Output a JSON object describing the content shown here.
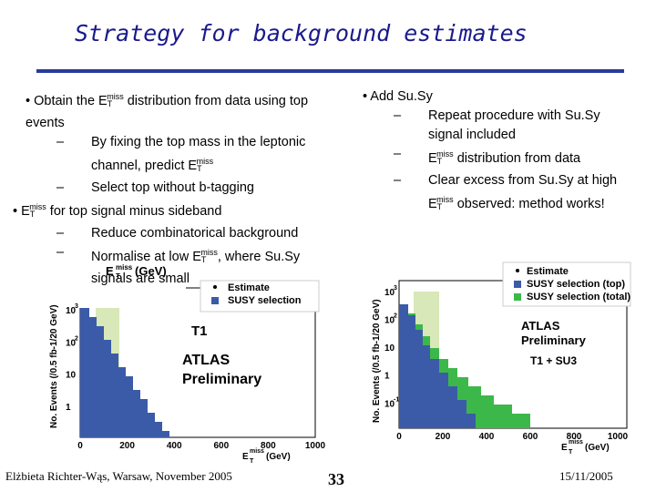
{
  "title": "Strategy for background estimates",
  "left": [
    [
      "• Obtain the E",
      "T",
      "miss",
      " distribution from data using top events"
    ],
    [
      "–",
      "By fixing the top mass in the leptonic channel, predict E",
      "T",
      "miss"
    ],
    [
      "–",
      "Select top without b-tagging"
    ],
    [
      "• E",
      "T",
      "miss",
      " for top signal minus sideband"
    ],
    [
      "–",
      "Reduce combinatorical background"
    ],
    [
      "–",
      "Normalise at low E",
      "T",
      "miss",
      ", where Su.Sy signals are small"
    ]
  ],
  "right": [
    [
      "• Add Su.Sy"
    ],
    [
      "–",
      "Repeat procedure with Su.Sy signal included"
    ],
    [
      "–",
      "E",
      "T",
      "miss",
      " distribution from data"
    ],
    [
      "–",
      "Clear excess from Su.Sy at high E",
      "T",
      "miss",
      " observed: method works!"
    ]
  ],
  "plot1": {
    "header": [
      "E",
      "T",
      "miss",
      " (GeV)"
    ],
    "legend": [
      "Estimate",
      "SUSY selection"
    ],
    "tag": "T1",
    "atlas": "ATLAS",
    "preliminary": "Preliminary",
    "ylabel": "No. Events (/0.5 fb-1/20 GeV)",
    "yticks": [
      [
        "10",
        "3"
      ],
      [
        "10",
        "2"
      ],
      [
        "10",
        ""
      ],
      [
        "1",
        ""
      ]
    ],
    "xticks": [
      0,
      200,
      400,
      600,
      800,
      1000
    ],
    "xlabel": [
      "E",
      "T",
      "miss",
      " (GeV)"
    ]
  },
  "plot2": {
    "legend": [
      "Estimate",
      "SUSY selection (top)",
      "SUSY selection (total)"
    ],
    "atlas": "ATLAS",
    "preliminary": "Preliminary",
    "tag": "T1 + SU3",
    "ylabel": "No. Events (/0.5 fb-1/20 GeV)",
    "yticks": [
      [
        "10",
        "3"
      ],
      [
        "10",
        "2"
      ],
      [
        "10",
        ""
      ],
      [
        "1",
        ""
      ],
      [
        "10",
        "-1"
      ]
    ],
    "xticks": [
      0,
      200,
      400,
      600,
      800,
      1000
    ],
    "xlabel": [
      "E",
      "T",
      "miss",
      " (GeV)"
    ]
  },
  "footer": {
    "author": "Elżbieta Richter-Wąs, Warsaw, November 2005",
    "page": "33",
    "date": "15/11/2005"
  }
}
